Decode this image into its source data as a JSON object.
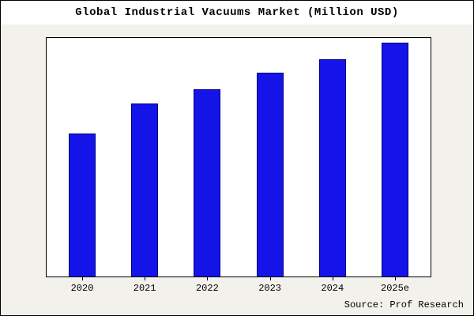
{
  "title": "Global Industrial Vacuums Market (Million USD)",
  "source": "Source: Prof Research",
  "colors": {
    "bar_fill": "#1414e8",
    "bar_border": "#000080",
    "background": "#f2f1ec",
    "plot_background": "#ffffff",
    "frame_border": "#000000"
  },
  "chart_data": {
    "type": "bar",
    "title": "Global Industrial Vacuums Market (Million USD)",
    "categories": [
      "2020",
      "2021",
      "2022",
      "2023",
      "2024",
      "2025e"
    ],
    "values": [
      61,
      74,
      80,
      87,
      93,
      100
    ],
    "xlabel": "",
    "ylabel": "",
    "ylim": [
      0,
      102
    ],
    "grid": false,
    "legend": false,
    "y_axis_labels_visible": false,
    "annotation": "Source: Prof Research"
  }
}
